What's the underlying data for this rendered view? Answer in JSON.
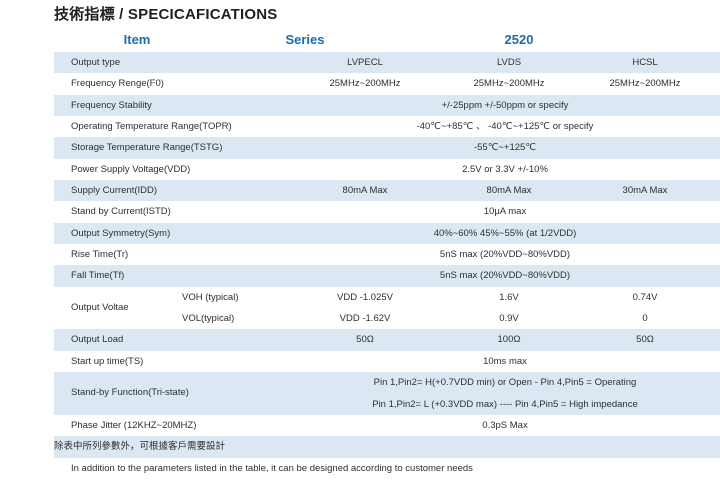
{
  "title": "技術指標 / SPECICAFICATIONS",
  "headers": {
    "item": "Item",
    "series": "Series",
    "model": "2520"
  },
  "rows": [
    {
      "label": "Output type",
      "lvpecl": "LVPECL",
      "lvds": "LVDS",
      "hcsl": "HCSL"
    },
    {
      "label": "Frequency Renge(F0)",
      "lvpecl": "25MHz~200MHz",
      "lvds": "25MHz~200MHz",
      "hcsl": "25MHz~200MHz"
    },
    {
      "label": "Frequency Stability",
      "value": "+/-25ppm     +/-50ppm     or  specify"
    },
    {
      "label": "Operating Temperature Range(TOPR)",
      "value": "-40℃~+85℃ 、 -40℃~+125℃   or  specify"
    },
    {
      "label": "Storage Temperature Range(TSTG)",
      "value": "-55℃~+125℃"
    },
    {
      "label": "Power Supply Voltage(VDD)",
      "value": "2.5V  or  3.3V   +/-10%"
    },
    {
      "label": "Supply Current(IDD)",
      "lvpecl": "80mA Max",
      "lvds": "80mA Max",
      "hcsl": "30mA Max"
    },
    {
      "label": "Stand by Current(ISTD)",
      "value": "10μA    max"
    },
    {
      "label": "Output Symmetry(Sym)",
      "value": "40%~60%     45%~55%   (at 1/2VDD)"
    },
    {
      "label": "Rise Time(Tr)",
      "value": "5nS max  (20%VDD~80%VDD)"
    },
    {
      "label": "Fall Time(Tf)",
      "value": "5nS max  (20%VDD~80%VDD)"
    },
    {
      "label": "Output Load",
      "lvpecl": "50Ω",
      "lvds": "100Ω",
      "hcsl": "50Ω"
    },
    {
      "label": "Start up time(TS)",
      "value": "10ms max"
    },
    {
      "label": "Phase Jitter  (12KHZ~20MHZ)",
      "value": "0.3pS Max"
    }
  ],
  "output_voltage": {
    "label": "Output Voltae",
    "voh": {
      "label": "VOH  (typical)",
      "lvpecl": "VDD  -1.025V",
      "lvds": "1.6V",
      "hcsl": "0.74V"
    },
    "vol": {
      "label": "VOL(typical)",
      "lvpecl": "VDD  -1.62V",
      "lvds": "0.9V",
      "hcsl": "0"
    }
  },
  "standby": {
    "label": "Stand-by Function(Tri-state)",
    "line1": "Pin 1,Pin2= H(+0.7VDD min) or Open - Pin 4,Pin5 = Operating",
    "line2": "Pin 1,Pin2= L (+0.3VDD max) ---- Pin 4,Pin5 = High impedance"
  },
  "notes": {
    "chinese": "除表中所列參數外，可根據客戶需要設計",
    "english": "In addition to the parameters listed in the table, it can be designed according to customer needs"
  },
  "colors": {
    "header_text": "#1f6ba8",
    "row_shade": "#dbe8f3",
    "text": "#2f2f2f"
  }
}
